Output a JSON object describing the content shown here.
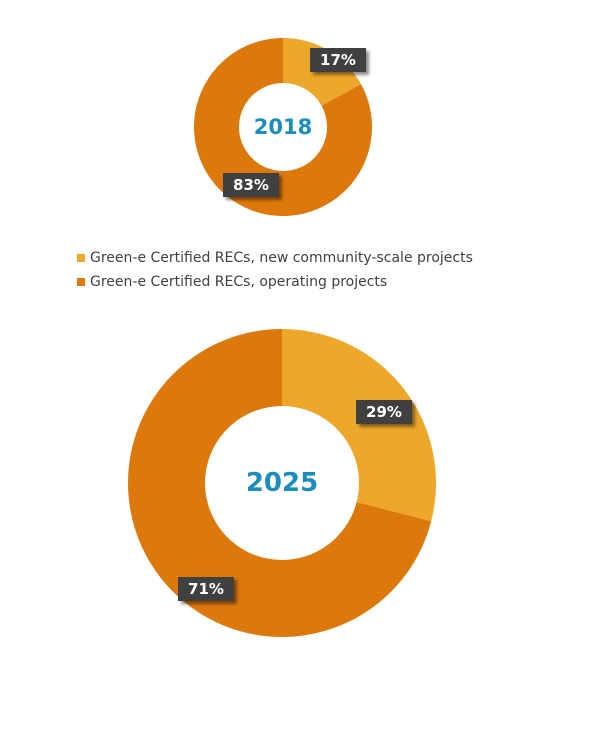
{
  "colors": {
    "new_projects": "#EDA82C",
    "operating_projects": "#DD780C",
    "center_text": "#1A8CBE",
    "label_box": "#404040"
  },
  "legend": [
    {
      "label": "Green-e Certified RECs, new community-scale projects",
      "color": "#EDA82C"
    },
    {
      "label": "Green-e Certified RECs, operating projects",
      "color": "#DD780C"
    }
  ],
  "chart_data": [
    {
      "type": "pie",
      "title": "2018",
      "categories": [
        "Green-e Certified RECs, new community-scale projects",
        "Green-e Certified RECs, operating projects"
      ],
      "values": [
        17,
        83
      ],
      "data_labels": [
        "17%",
        "83%"
      ]
    },
    {
      "type": "pie",
      "title": "2025",
      "categories": [
        "Green-e Certified RECs, new community-scale projects",
        "Green-e Certified RECs, operating projects"
      ],
      "values": [
        29,
        71
      ],
      "data_labels": [
        "29%",
        "71%"
      ]
    }
  ]
}
